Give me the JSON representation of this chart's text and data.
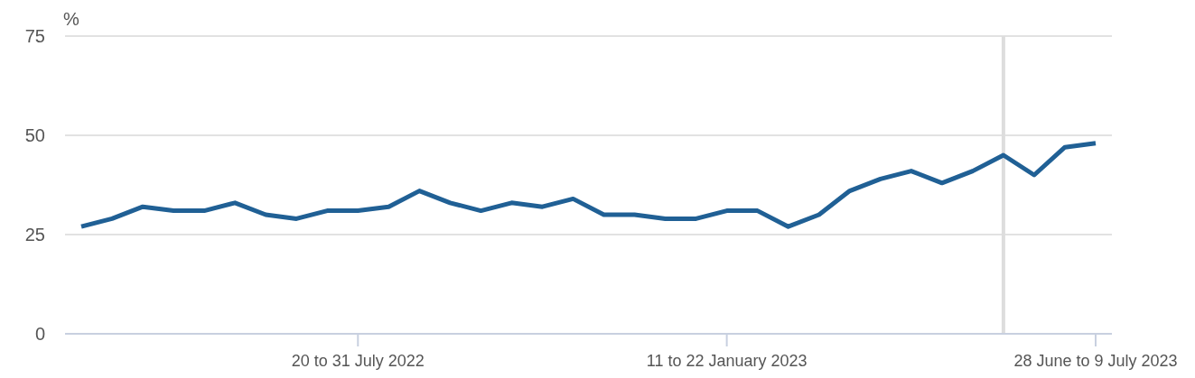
{
  "chart_data": {
    "type": "line",
    "ylabel": "%",
    "categories": [
      null,
      null,
      null,
      null,
      null,
      null,
      null,
      null,
      null,
      "20 to 31 July 2022",
      null,
      null,
      null,
      null,
      null,
      null,
      null,
      null,
      null,
      null,
      null,
      "11 to 22 January 2023",
      null,
      null,
      null,
      null,
      null,
      null,
      null,
      null,
      null,
      null,
      null,
      "28 June to 9 July 2023"
    ],
    "series": [
      {
        "color": "#206095",
        "values": [
          27,
          29,
          32,
          31,
          31,
          33,
          30,
          29,
          31,
          31,
          32,
          36,
          33,
          31,
          33,
          32,
          34,
          30,
          30,
          29,
          29,
          31,
          31,
          27,
          30,
          36,
          39,
          41,
          38,
          41,
          45,
          40,
          47,
          48
        ]
      }
    ],
    "ylim": [
      0,
      75
    ],
    "yticks": [
      0,
      25,
      50,
      75
    ],
    "grid": "y",
    "legend": false,
    "marker": "none",
    "line_style": "solid"
  }
}
